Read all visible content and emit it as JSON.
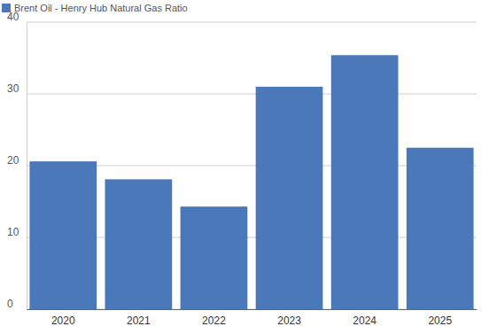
{
  "chart_data": {
    "type": "bar",
    "categories": [
      "2020",
      "2021",
      "2022",
      "2023",
      "2024",
      "2025"
    ],
    "series": [
      {
        "name": "Brent Oil - Henry Hub Natural Gas Ratio",
        "color": "#4a78b8",
        "values": [
          20.6,
          18.1,
          14.3,
          31.0,
          35.4,
          22.5
        ]
      }
    ],
    "ylim": [
      0,
      40
    ],
    "yticks": [
      0,
      10,
      20,
      30,
      40
    ],
    "grid": true,
    "legend": "top-left"
  }
}
